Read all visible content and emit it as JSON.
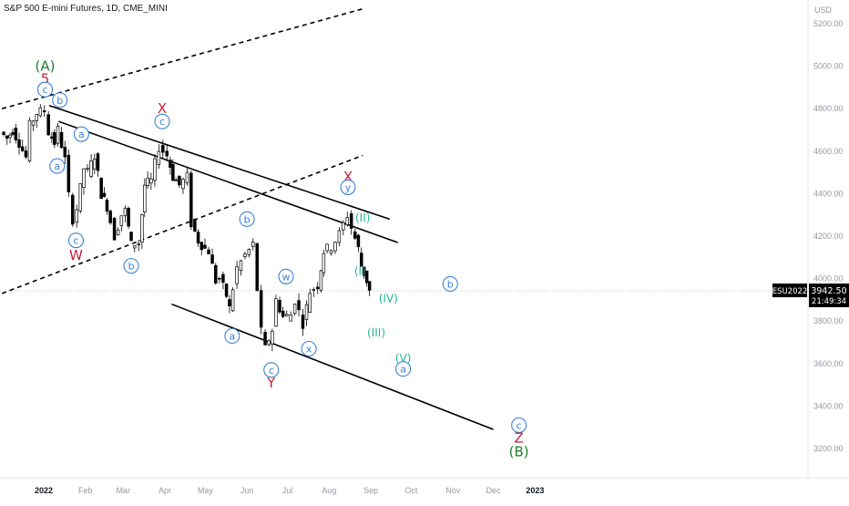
{
  "header": {
    "title": "S&P 500 E-mini Futures, 1D, CME_MINI"
  },
  "chart_data": {
    "type": "candlestick",
    "title": "S&P 500 E-mini Futures, 1D, CME_MINI",
    "currency": "USD",
    "ylim": [
      3100,
      5300
    ],
    "y_ticks": [
      {
        "value": 5200,
        "label": "5200.00"
      },
      {
        "value": 5000,
        "label": "5000.00"
      },
      {
        "value": 4800,
        "label": "4800.00"
      },
      {
        "value": 4600,
        "label": "4600.00"
      },
      {
        "value": 4400,
        "label": "4400.00"
      },
      {
        "value": 4200,
        "label": "4200.00"
      },
      {
        "value": 4000,
        "label": "4000.00"
      },
      {
        "value": 3800,
        "label": "3800.00"
      },
      {
        "value": 3600,
        "label": "3600.00"
      },
      {
        "value": 3400,
        "label": "3400.00"
      },
      {
        "value": 3200,
        "label": "3200.00"
      }
    ],
    "x_ticks": [
      {
        "date": "2022-01-01",
        "label": "2022",
        "bold": true
      },
      {
        "date": "2022-02-01",
        "label": "Feb"
      },
      {
        "date": "2022-03-01",
        "label": "Mar"
      },
      {
        "date": "2022-04-01",
        "label": "Apr"
      },
      {
        "date": "2022-05-01",
        "label": "May"
      },
      {
        "date": "2022-06-01",
        "label": "Jun"
      },
      {
        "date": "2022-07-01",
        "label": "Jul"
      },
      {
        "date": "2022-08-01",
        "label": "Aug"
      },
      {
        "date": "2022-09-01",
        "label": "Sep"
      },
      {
        "date": "2022-10-01",
        "label": "Oct"
      },
      {
        "date": "2022-11-01",
        "label": "Nov"
      },
      {
        "date": "2022-12-01",
        "label": "Dec"
      },
      {
        "date": "2023-01-01",
        "label": "2023",
        "bold": true
      }
    ],
    "price_tag": {
      "symbol": "ESU2022",
      "price": "3942.50",
      "countdown": "21:49:34",
      "value": 3942.5
    },
    "closes": [
      {
        "date": "2021-12-01",
        "close": 4690
      },
      {
        "date": "2021-12-06",
        "close": 4660
      },
      {
        "date": "2021-12-10",
        "close": 4700
      },
      {
        "date": "2021-12-15",
        "close": 4640
      },
      {
        "date": "2021-12-20",
        "close": 4570
      },
      {
        "date": "2021-12-23",
        "close": 4720
      },
      {
        "date": "2021-12-28",
        "close": 4780
      },
      {
        "date": "2022-01-03",
        "close": 4790
      },
      {
        "date": "2022-01-06",
        "close": 4690
      },
      {
        "date": "2022-01-10",
        "close": 4640
      },
      {
        "date": "2022-01-13",
        "close": 4700
      },
      {
        "date": "2022-01-18",
        "close": 4560
      },
      {
        "date": "2022-01-21",
        "close": 4390
      },
      {
        "date": "2022-01-24",
        "close": 4280
      },
      {
        "date": "2022-01-27",
        "close": 4330
      },
      {
        "date": "2022-02-01",
        "close": 4520
      },
      {
        "date": "2022-02-04",
        "close": 4500
      },
      {
        "date": "2022-02-09",
        "close": 4580
      },
      {
        "date": "2022-02-14",
        "close": 4400
      },
      {
        "date": "2022-02-18",
        "close": 4340
      },
      {
        "date": "2022-02-24",
        "close": 4200
      },
      {
        "date": "2022-03-01",
        "close": 4300
      },
      {
        "date": "2022-03-04",
        "close": 4320
      },
      {
        "date": "2022-03-08",
        "close": 4160
      },
      {
        "date": "2022-03-14",
        "close": 4170
      },
      {
        "date": "2022-03-18",
        "close": 4440
      },
      {
        "date": "2022-03-23",
        "close": 4460
      },
      {
        "date": "2022-03-29",
        "close": 4620
      },
      {
        "date": "2022-04-04",
        "close": 4580
      },
      {
        "date": "2022-04-08",
        "close": 4480
      },
      {
        "date": "2022-04-13",
        "close": 4440
      },
      {
        "date": "2022-04-19",
        "close": 4480
      },
      {
        "date": "2022-04-22",
        "close": 4260
      },
      {
        "date": "2022-04-27",
        "close": 4180
      },
      {
        "date": "2022-05-02",
        "close": 4140
      },
      {
        "date": "2022-05-05",
        "close": 4130
      },
      {
        "date": "2022-05-10",
        "close": 3990
      },
      {
        "date": "2022-05-13",
        "close": 4000
      },
      {
        "date": "2022-05-18",
        "close": 3920
      },
      {
        "date": "2022-05-20",
        "close": 3860
      },
      {
        "date": "2022-05-26",
        "close": 4050
      },
      {
        "date": "2022-06-01",
        "close": 4110
      },
      {
        "date": "2022-06-07",
        "close": 4160
      },
      {
        "date": "2022-06-10",
        "close": 3950
      },
      {
        "date": "2022-06-13",
        "close": 3750
      },
      {
        "date": "2022-06-16",
        "close": 3670
      },
      {
        "date": "2022-06-21",
        "close": 3760
      },
      {
        "date": "2022-06-24",
        "close": 3900
      },
      {
        "date": "2022-06-29",
        "close": 3820
      },
      {
        "date": "2022-07-05",
        "close": 3830
      },
      {
        "date": "2022-07-08",
        "close": 3900
      },
      {
        "date": "2022-07-14",
        "close": 3790
      },
      {
        "date": "2022-07-19",
        "close": 3940
      },
      {
        "date": "2022-07-25",
        "close": 3970
      },
      {
        "date": "2022-07-29",
        "close": 4130
      },
      {
        "date": "2022-08-04",
        "close": 4150
      },
      {
        "date": "2022-08-10",
        "close": 4210
      },
      {
        "date": "2022-08-16",
        "close": 4300
      },
      {
        "date": "2022-08-19",
        "close": 4240
      },
      {
        "date": "2022-08-24",
        "close": 4140
      },
      {
        "date": "2022-08-26",
        "close": 4060
      },
      {
        "date": "2022-08-30",
        "close": 3990
      },
      {
        "date": "2022-09-01",
        "close": 3942.5
      }
    ],
    "trendlines": [
      {
        "style": "dashed",
        "from": {
          "date": "2021-12-01",
          "price": 4800
        },
        "to": {
          "date": "2022-08-26",
          "price": 5270
        }
      },
      {
        "style": "dashed",
        "from": {
          "date": "2021-12-01",
          "price": 3930
        },
        "to": {
          "date": "2022-08-26",
          "price": 4580
        }
      },
      {
        "style": "solid",
        "from": {
          "date": "2022-01-05",
          "price": 4815
        },
        "to": {
          "date": "2022-09-15",
          "price": 4280
        }
      },
      {
        "style": "solid",
        "from": {
          "date": "2022-01-12",
          "price": 4740
        },
        "to": {
          "date": "2022-09-21",
          "price": 4170
        }
      },
      {
        "style": "solid",
        "from": {
          "date": "2022-04-06",
          "price": 3880
        },
        "to": {
          "date": "2022-12-01",
          "price": 3290
        }
      }
    ],
    "annotations": [
      {
        "text": "(A)",
        "color": "#1b7f2a",
        "date": "2022-01-02",
        "price": 5000,
        "style": "text"
      },
      {
        "text": "5",
        "color": "#c21f3a",
        "date": "2022-01-02",
        "price": 4940,
        "style": "text"
      },
      {
        "text": "c",
        "color": "#3b82d6",
        "date": "2022-01-02",
        "price": 4890,
        "style": "circle"
      },
      {
        "text": "b",
        "color": "#3b82d6",
        "date": "2022-01-13",
        "price": 4840,
        "style": "circle"
      },
      {
        "text": "a",
        "color": "#3b82d6",
        "date": "2022-01-29",
        "price": 4680,
        "style": "circle"
      },
      {
        "text": "a",
        "color": "#3b82d6",
        "date": "2022-01-11",
        "price": 4530,
        "style": "circle"
      },
      {
        "text": "c",
        "color": "#3b82d6",
        "date": "2022-01-25",
        "price": 4180,
        "style": "circle"
      },
      {
        "text": "W",
        "color": "#c21f3a",
        "date": "2022-01-25",
        "price": 4110,
        "style": "text"
      },
      {
        "text": "b",
        "color": "#3b82d6",
        "date": "2022-03-07",
        "price": 4060,
        "style": "circle"
      },
      {
        "text": "X",
        "color": "#c21f3a",
        "date": "2022-03-30",
        "price": 4800,
        "style": "text"
      },
      {
        "text": "c",
        "color": "#3b82d6",
        "date": "2022-03-30",
        "price": 4740,
        "style": "circle"
      },
      {
        "text": "b",
        "color": "#3b82d6",
        "date": "2022-06-01",
        "price": 4280,
        "style": "circle"
      },
      {
        "text": "w",
        "color": "#3b82d6",
        "date": "2022-06-30",
        "price": 4010,
        "style": "circle"
      },
      {
        "text": "a",
        "color": "#3b82d6",
        "date": "2022-05-21",
        "price": 3730,
        "style": "circle"
      },
      {
        "text": "x",
        "color": "#3b82d6",
        "date": "2022-07-17",
        "price": 3670,
        "style": "circle"
      },
      {
        "text": "c",
        "color": "#3b82d6",
        "date": "2022-06-19",
        "price": 3570,
        "style": "circle"
      },
      {
        "text": "Y",
        "color": "#c21f3a",
        "date": "2022-06-19",
        "price": 3510,
        "style": "text"
      },
      {
        "text": "X",
        "color": "#c21f3a",
        "date": "2022-08-15",
        "price": 4480,
        "style": "text"
      },
      {
        "text": "y",
        "color": "#3b82d6",
        "date": "2022-08-15",
        "price": 4430,
        "style": "circle"
      },
      {
        "text": "(II)",
        "color": "#1fb59a",
        "date": "2022-08-26",
        "price": 4290,
        "style": "text"
      },
      {
        "text": "(I)",
        "color": "#1fb59a",
        "date": "2022-08-24",
        "price": 4040,
        "style": "text"
      },
      {
        "text": "(IV)",
        "color": "#1fb59a",
        "date": "2022-09-14",
        "price": 3910,
        "style": "text"
      },
      {
        "text": "(III)",
        "color": "#1fb59a",
        "date": "2022-09-05",
        "price": 3750,
        "style": "text"
      },
      {
        "text": "(V)",
        "color": "#1fb59a",
        "date": "2022-09-25",
        "price": 3630,
        "style": "text"
      },
      {
        "text": "a",
        "color": "#3b82d6",
        "date": "2022-09-25",
        "price": 3575,
        "style": "circle"
      },
      {
        "text": "b",
        "color": "#3b82d6",
        "date": "2022-10-30",
        "price": 3975,
        "style": "circle"
      },
      {
        "text": "c",
        "color": "#3b82d6",
        "date": "2022-12-20",
        "price": 3310,
        "style": "circle"
      },
      {
        "text": "Z",
        "color": "#c21f3a",
        "date": "2022-12-20",
        "price": 3250,
        "style": "text"
      },
      {
        "text": "(B)",
        "color": "#1b7f2a",
        "date": "2022-12-20",
        "price": 3185,
        "style": "text"
      }
    ]
  }
}
